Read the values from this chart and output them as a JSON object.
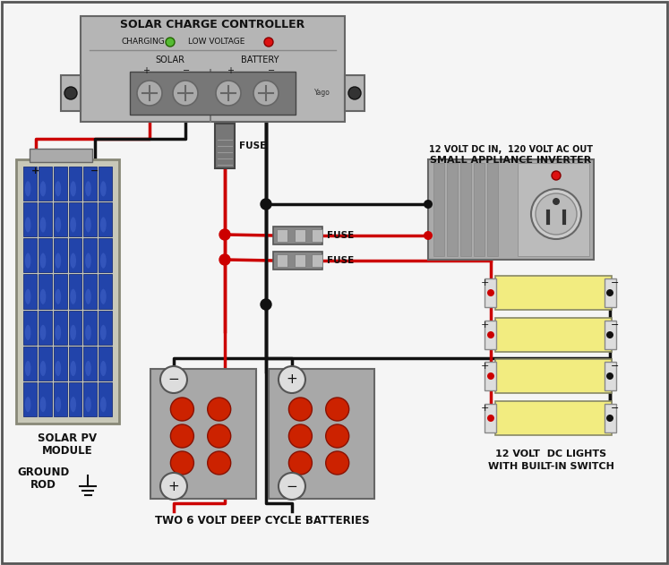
{
  "bg_color": "#f5f5f5",
  "controller_label": "SOLAR CHARGE CONTROLLER",
  "controller_sub1": "CHARGING",
  "controller_sub2": "LOW VOLTAGE",
  "controller_solar": "SOLAR",
  "controller_battery": "BATTERY",
  "controller_brand": "Yago",
  "solar_label1": "SOLAR PV",
  "solar_label2": "MODULE",
  "solar_label3": "GROUND",
  "solar_label4": "ROD",
  "battery_label": "TWO 6 VOLT DEEP CYCLE BATTERIES",
  "inverter_label1": "SMALL APPLIANCE INVERTER",
  "inverter_label2": "12 VOLT DC IN,  120 VOLT AC OUT",
  "lights_label1": "12 VOLT  DC LIGHTS",
  "lights_label2": "WITH BUILT-IN SWITCH",
  "fuse_label": "FUSE",
  "wire_red": "#cc0000",
  "wire_black": "#111111"
}
